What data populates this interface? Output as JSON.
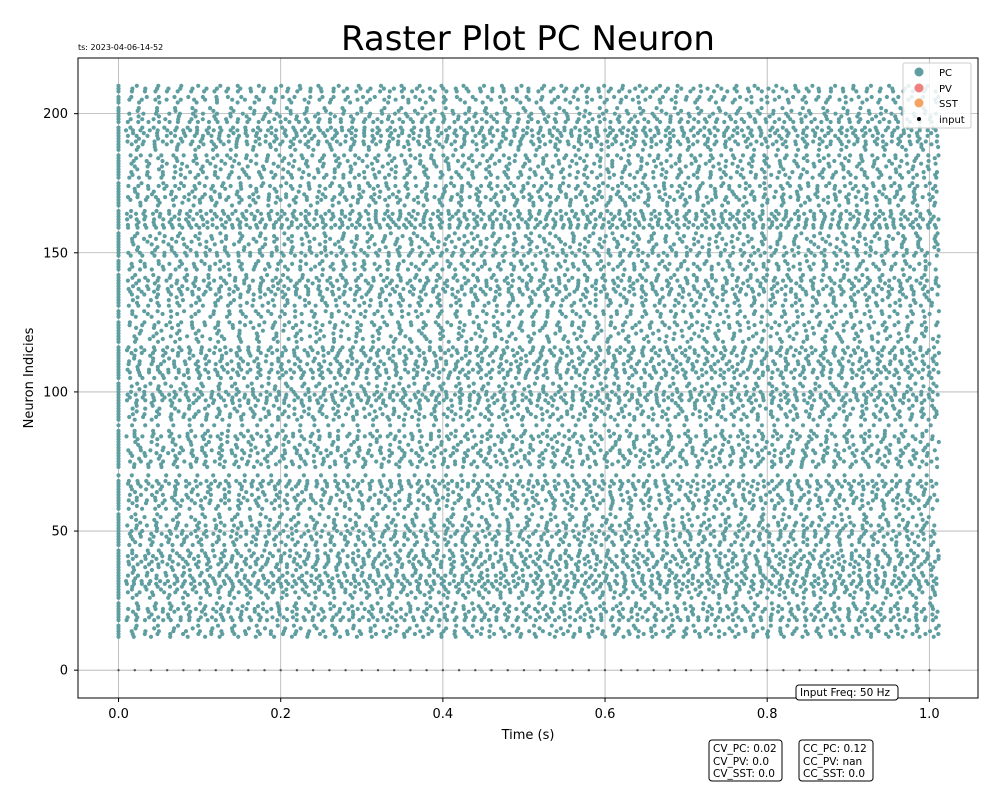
{
  "timestamp": "ts: 2023-04-06-14-52",
  "chart_data": {
    "type": "scatter",
    "title": "Raster Plot PC Neuron",
    "xlabel": "Time (s)",
    "ylabel": "Neuron Indicies",
    "xlim": [
      -0.05,
      1.06
    ],
    "ylim": [
      -10,
      220
    ],
    "xticks": [
      "0.0",
      "0.2",
      "0.4",
      "0.6",
      "0.8",
      "1.0"
    ],
    "yticks": [
      "0",
      "50",
      "100",
      "150",
      "200"
    ],
    "grid": true,
    "legend_position": "top-right",
    "series": [
      {
        "name": "PC",
        "color": "#5f9ea0",
        "neuron_range": [
          12,
          210
        ],
        "time_range": [
          0.0,
          1.012
        ],
        "approx_rate_hz": 50
      },
      {
        "name": "PV",
        "color": "#f08080"
      },
      {
        "name": "SST",
        "color": "#f4a460"
      },
      {
        "name": "input",
        "color": "#000000",
        "neuron_index": 0,
        "time_range": [
          0.0,
          1.0
        ],
        "interval_s": 0.02
      }
    ],
    "annotations": {
      "input_freq": "Input Freq: 50 Hz",
      "cv": [
        "CV_PC: 0.02",
        "CV_PV: 0.0",
        "CV_SST: 0.0"
      ],
      "cc": [
        "CC_PC: 0.12",
        "CC_PV: nan",
        "CC_SST: 0.0"
      ]
    }
  }
}
